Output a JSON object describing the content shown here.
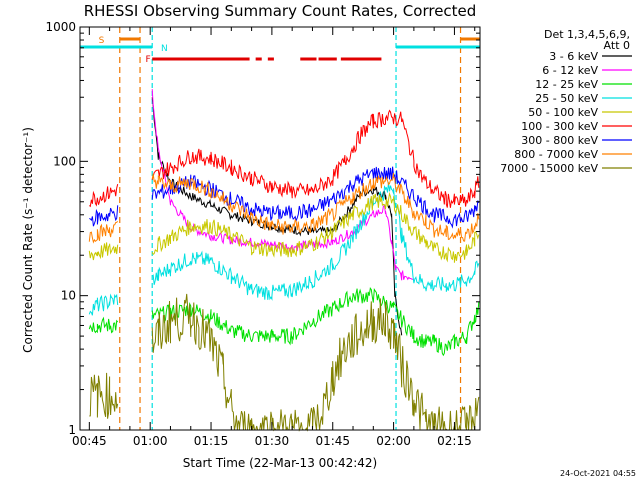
{
  "chart_data": {
    "type": "line",
    "title": "RHESSI Observing Summary Count Rates, Corrected",
    "xlabel": "Start Time (22-Mar-13 00:42:42)",
    "ylabel": "Corrected Count Rate (s⁻¹ detector⁻¹)",
    "y_scale": "log",
    "ylim": [
      1,
      1000
    ],
    "xlim": [
      42.7,
      141.3
    ],
    "x_ticks": [
      {
        "t": 45,
        "label": "00:45"
      },
      {
        "t": 60,
        "label": "01:00"
      },
      {
        "t": 75,
        "label": "01:15"
      },
      {
        "t": 90,
        "label": "01:30"
      },
      {
        "t": 105,
        "label": "01:45"
      },
      {
        "t": 120,
        "label": "02:00"
      },
      {
        "t": 135,
        "label": "02:15"
      }
    ],
    "y_ticks": [
      {
        "v": 1,
        "label": "1"
      },
      {
        "v": 10,
        "label": "10"
      },
      {
        "v": 100,
        "label": "100"
      },
      {
        "v": 1000,
        "label": "1000"
      }
    ],
    "legend": {
      "header": [
        "Det 1,3,4,5,6,9,",
        "Att 0"
      ],
      "placement": "right"
    },
    "flags": {
      "S_label": "S",
      "F_label": "F",
      "N_label": "N",
      "S_color": "#f07800",
      "F_color": "#e00000",
      "N_color": "#00e0e0",
      "night_intervals": [
        [
          42.7,
          60.5
        ],
        [
          120.6,
          141.3
        ]
      ],
      "saa_intervals": [
        [
          52.5,
          57.5
        ],
        [
          136.5,
          141.3
        ]
      ],
      "flare_segments": [
        [
          60.5,
          84.5
        ],
        [
          86,
          87.5
        ],
        [
          89,
          90.5
        ],
        [
          97,
          101
        ],
        [
          101.5,
          106
        ],
        [
          107,
          117
        ]
      ]
    },
    "footer_date": "24-Oct-2021 04:55",
    "series": [
      {
        "name": "3 - 6 keV",
        "color": "#000000",
        "x": [
          46.3,
          56.3,
          59,
          60.2,
          60.5,
          62,
          65,
          70,
          75,
          80,
          85,
          90,
          95,
          100,
          105,
          108,
          112,
          115,
          118,
          119.5,
          120.3,
          122,
          125
        ],
        "y": [
          null,
          null,
          null,
          null,
          300,
          110,
          70,
          55,
          47,
          40,
          36,
          33,
          31,
          30,
          30,
          40,
          58,
          62,
          56,
          40,
          10,
          5,
          null
        ]
      },
      {
        "name": "6 - 12 keV",
        "color": "#ff00ff",
        "x": [
          52,
          56.3,
          59,
          60.2,
          60.5,
          62,
          65,
          70,
          75,
          80,
          85,
          90,
          95,
          100,
          105,
          110,
          115,
          118,
          119.5,
          120.5,
          122,
          125,
          128
        ],
        "y": [
          null,
          null,
          null,
          null,
          320,
          120,
          50,
          32,
          28,
          26,
          25,
          24,
          23,
          24,
          25,
          30,
          40,
          44,
          25,
          16,
          14,
          14,
          null
        ]
      },
      {
        "name": "12 - 25 keV",
        "color": "#00e000",
        "x": [
          45,
          47,
          50,
          52,
          56,
          59,
          60.5,
          65,
          70,
          75,
          80,
          85,
          90,
          95,
          100,
          105,
          110,
          115,
          120,
          125,
          128,
          130,
          133,
          135,
          138,
          140,
          141
        ],
        "y": [
          6,
          6,
          6,
          6,
          null,
          null,
          7,
          7.5,
          8,
          7,
          5.5,
          5,
          5,
          5,
          6.5,
          8,
          10,
          10,
          8,
          5,
          4.5,
          4.5,
          4,
          4.5,
          5,
          7,
          8
        ]
      },
      {
        "name": "25 - 50 keV",
        "color": "#00e0e0",
        "x": [
          45,
          47,
          50,
          52,
          56,
          59,
          60.5,
          62,
          65,
          70,
          75,
          80,
          85,
          90,
          95,
          100,
          105,
          108,
          112,
          115,
          118,
          120,
          122,
          125,
          128,
          130,
          133,
          135,
          138,
          140,
          141
        ],
        "y": [
          8,
          8.5,
          9,
          9.5,
          null,
          null,
          13,
          14,
          16,
          19,
          18,
          14,
          11,
          10.5,
          11,
          13,
          17,
          22,
          35,
          50,
          60,
          64,
          28,
          14,
          12,
          12,
          12,
          12,
          13,
          15,
          17
        ]
      },
      {
        "name": "50 - 100 keV",
        "color": "#c8c800",
        "x": [
          45,
          47,
          50,
          52,
          56,
          59,
          60.5,
          62,
          65,
          70,
          75,
          80,
          85,
          90,
          95,
          100,
          105,
          110,
          115,
          120,
          125,
          128,
          130,
          133,
          135,
          138,
          140,
          141
        ],
        "y": [
          20,
          21,
          22,
          23,
          null,
          null,
          22,
          24,
          27,
          33,
          33,
          28,
          23,
          22,
          22,
          24,
          30,
          40,
          50,
          50,
          30,
          25,
          22,
          21,
          20,
          21,
          26,
          30
        ]
      },
      {
        "name": "100 - 300 keV",
        "color": "#ff0000",
        "x": [
          45,
          47,
          50,
          52,
          56,
          59,
          60.5,
          62,
          65,
          70,
          75,
          80,
          85,
          90,
          95,
          100,
          105,
          108,
          112,
          115,
          118,
          120,
          122,
          125,
          127,
          130,
          133,
          135,
          138,
          140,
          141
        ],
        "y": [
          52,
          54,
          58,
          62,
          null,
          null,
          75,
          80,
          90,
          110,
          105,
          90,
          75,
          65,
          60,
          60,
          75,
          100,
          160,
          200,
          210,
          210,
          205,
          100,
          75,
          60,
          52,
          50,
          50,
          60,
          70
        ]
      },
      {
        "name": "300 - 800 keV",
        "color": "#0000ff",
        "x": [
          45,
          47,
          50,
          52,
          56,
          59,
          60.5,
          62,
          65,
          70,
          75,
          80,
          85,
          90,
          95,
          100,
          105,
          110,
          115,
          120,
          125,
          128,
          130,
          133,
          135,
          138,
          140,
          141
        ],
        "y": [
          37,
          38,
          40,
          42,
          null,
          null,
          55,
          58,
          62,
          70,
          62,
          52,
          44,
          41,
          41,
          43,
          52,
          68,
          82,
          80,
          55,
          45,
          40,
          38,
          37,
          38,
          44,
          52
        ]
      },
      {
        "name": "800 - 7000 keV",
        "color": "#ff8000",
        "x": [
          45,
          47,
          50,
          52,
          56,
          59,
          60.5,
          62,
          65,
          70,
          75,
          80,
          85,
          90,
          95,
          100,
          105,
          110,
          115,
          120,
          125,
          128,
          130,
          133,
          135,
          138,
          140,
          141
        ],
        "y": [
          28,
          29,
          31,
          32,
          null,
          null,
          75,
          70,
          65,
          70,
          60,
          48,
          38,
          33,
          32,
          33,
          40,
          55,
          70,
          72,
          42,
          36,
          31,
          29,
          28,
          29,
          33,
          40
        ]
      },
      {
        "name": "7000 - 15000 keV",
        "color": "#808000",
        "x": [
          45,
          47,
          50,
          52,
          56,
          59,
          60.5,
          62,
          65,
          70,
          72,
          75,
          78,
          80,
          82,
          85,
          88,
          90,
          95,
          100,
          103,
          105,
          108,
          112,
          115,
          118,
          120,
          122,
          125,
          128,
          130,
          133,
          135,
          138,
          140,
          141
        ],
        "y": [
          1.8,
          1.8,
          1.8,
          1.8,
          null,
          null,
          4.5,
          5,
          6.5,
          7,
          6,
          4.5,
          2.5,
          1.4,
          1,
          1,
          1,
          1,
          1,
          1,
          1.5,
          2.5,
          4,
          5.5,
          6.5,
          6.5,
          5.5,
          3,
          1.8,
          1.1,
          1,
          1,
          1,
          1,
          1.2,
          1.8
        ]
      }
    ]
  }
}
